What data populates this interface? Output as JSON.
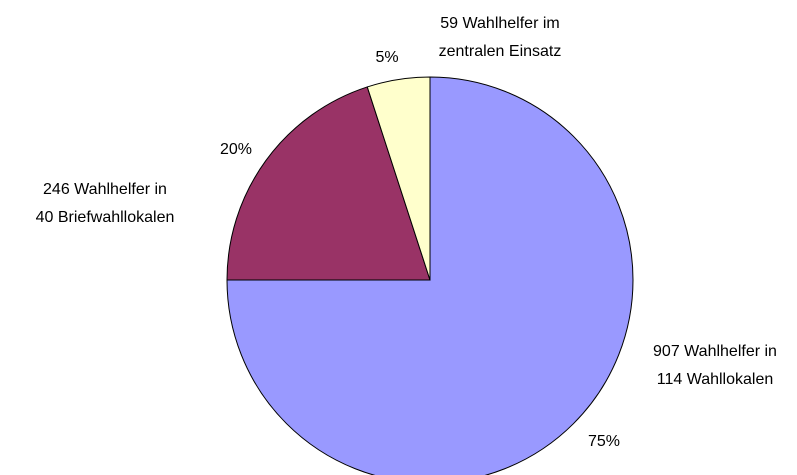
{
  "chart_data": {
    "type": "pie",
    "categories": [
      [
        "907 Wahlhelfer in",
        "114 Wahllokalen"
      ],
      [
        "246 Wahlhelfer in",
        "40 Briefwahllokalen"
      ],
      [
        "59 Wahlhelfer im",
        "zentralen Einsatz"
      ]
    ],
    "values": [
      75,
      20,
      5
    ],
    "value_labels": [
      "75%",
      "20%",
      "5%"
    ],
    "colors": [
      "#9999ff",
      "#993366",
      "#ffffcc"
    ]
  }
}
